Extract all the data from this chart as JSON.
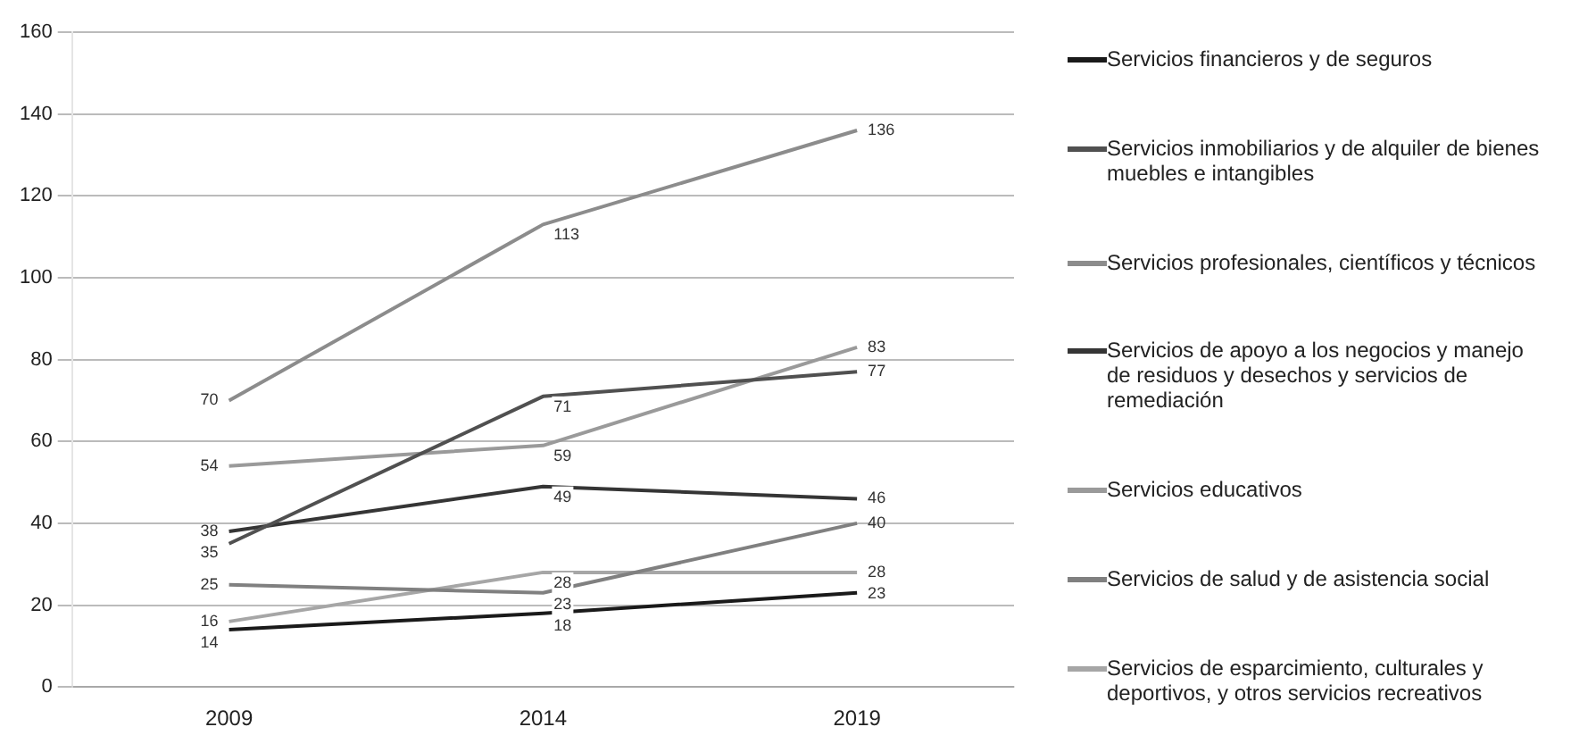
{
  "chart_data": {
    "type": "line",
    "categories": [
      "2009",
      "2014",
      "2019"
    ],
    "series": [
      {
        "name": "Servicios financieros y de seguros",
        "color": "#1a1a1a",
        "values": [
          14,
          18,
          23
        ]
      },
      {
        "name": "Servicios inmobiliarios y de alquiler de bienes muebles e intangibles",
        "color": "#505050",
        "values": [
          35,
          71,
          77
        ]
      },
      {
        "name": "Servicios profesionales, científicos y técnicos",
        "color": "#8c8c8c",
        "values": [
          70,
          113,
          136
        ]
      },
      {
        "name": "Servicios de apoyo a los negocios y manejo de residuos y desechos y servicios de remediación",
        "color": "#353535",
        "values": [
          38,
          49,
          46
        ]
      },
      {
        "name": "Servicios educativos",
        "color": "#9a9a9a",
        "values": [
          54,
          59,
          83
        ]
      },
      {
        "name": "Servicios de salud y de asistencia social",
        "color": "#808080",
        "values": [
          25,
          23,
          40
        ]
      },
      {
        "name": "Servicios de esparcimiento, culturales y deportivos, y otros servicios recreativos",
        "color": "#a6a6a6",
        "values": [
          16,
          28,
          28
        ]
      }
    ],
    "ylim": [
      0,
      160
    ],
    "yticks": [
      0,
      20,
      40,
      60,
      80,
      100,
      120,
      140,
      160
    ],
    "grid": "y",
    "legend": "right",
    "marker": "none",
    "line_style": "solid",
    "data_labels": true
  }
}
